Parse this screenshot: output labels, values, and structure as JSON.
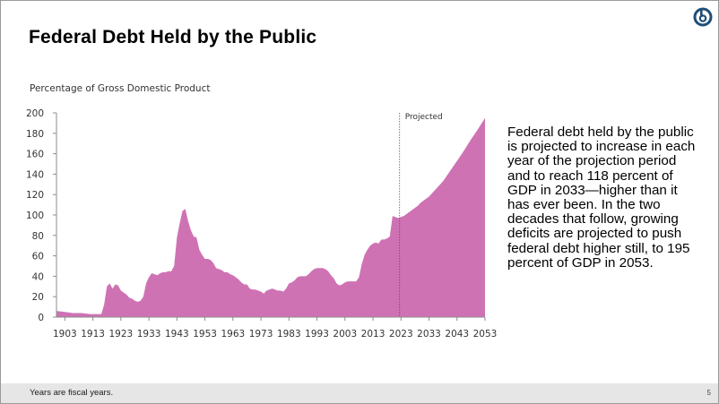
{
  "slide": {
    "title": "Federal Debt Held by the Public",
    "description": "Federal debt held by the public is projected to increase in each year of the projection period and to reach 118 percent of GDP in 2033—higher than it has ever been. In the two decades that follow, growing deficits are projected to push federal debt higher still, to 195 percent of GDP in 2053.",
    "footnote": "Years are fiscal years.",
    "page_number": "5",
    "logo_icon": "cbo-logo-icon"
  },
  "colors": {
    "area_fill": "#cf72b4",
    "axis": "#8c8c8c",
    "text": "#333333",
    "logo": "#1f4e79"
  },
  "chart_data": {
    "type": "area",
    "title": "",
    "ylabel": "Percentage of Gross Domestic Product",
    "xlabel": "",
    "xlim": [
      1900,
      2053
    ],
    "ylim": [
      0,
      200
    ],
    "xticks": [
      "1903",
      "1913",
      "1923",
      "1933",
      "1943",
      "1953",
      "1963",
      "1973",
      "1983",
      "1993",
      "2003",
      "2013",
      "2023",
      "2033",
      "2043",
      "2053"
    ],
    "yticks": [
      "0",
      "20",
      "40",
      "60",
      "80",
      "100",
      "120",
      "140",
      "160",
      "180",
      "200"
    ],
    "grid": false,
    "annotation": {
      "label": "Projected",
      "x": 2022.5
    },
    "series": [
      {
        "x": [
          1900,
          1903,
          1906,
          1909,
          1912,
          1915,
          1916,
          1917,
          1918,
          1919,
          1920,
          1921,
          1922,
          1923,
          1924,
          1925,
          1926,
          1927,
          1928,
          1929,
          1930,
          1931,
          1932,
          1933,
          1934,
          1935,
          1936,
          1937,
          1938,
          1939,
          1940,
          1941,
          1942,
          1943,
          1944,
          1945,
          1946,
          1947,
          1948,
          1949,
          1950,
          1951,
          1952,
          1953,
          1954,
          1955,
          1956,
          1957,
          1958,
          1959,
          1960,
          1961,
          1962,
          1963,
          1964,
          1965,
          1966,
          1967,
          1968,
          1969,
          1970,
          1971,
          1972,
          1973,
          1974,
          1975,
          1976,
          1977,
          1978,
          1979,
          1980,
          1981,
          1982,
          1983,
          1984,
          1985,
          1986,
          1987,
          1988,
          1989,
          1990,
          1991,
          1992,
          1993,
          1994,
          1995,
          1996,
          1997,
          1998,
          1999,
          2000,
          2001,
          2002,
          2003,
          2004,
          2005,
          2006,
          2007,
          2008,
          2009,
          2010,
          2011,
          2012,
          2013,
          2014,
          2015,
          2016,
          2017,
          2018,
          2019,
          2020,
          2021,
          2022,
          2023,
          2024,
          2025,
          2026,
          2027,
          2028,
          2029,
          2030,
          2031,
          2032,
          2033,
          2035,
          2038,
          2040,
          2043,
          2045,
          2048,
          2050,
          2053
        ],
        "values": [
          6,
          5,
          4,
          4,
          3,
          3,
          3,
          12,
          30,
          33,
          28,
          32,
          31,
          26,
          24,
          22,
          19,
          18,
          16,
          15,
          16,
          20,
          33,
          39,
          43,
          42,
          41,
          43,
          44,
          44,
          45,
          45,
          50,
          78,
          92,
          104,
          106,
          94,
          85,
          79,
          78,
          66,
          61,
          57,
          57,
          56,
          53,
          48,
          47,
          46,
          44,
          44,
          42,
          41,
          39,
          37,
          34,
          32,
          32,
          28,
          27,
          27,
          26,
          25,
          23,
          26,
          27,
          28,
          27,
          26,
          26,
          25,
          28,
          33,
          34,
          36,
          39,
          40,
          40,
          40,
          42,
          45,
          47,
          48,
          48,
          48,
          47,
          45,
          41,
          38,
          33,
          31,
          32,
          34,
          35,
          35,
          35,
          35,
          39,
          52,
          61,
          66,
          70,
          72,
          73,
          72,
          76,
          76,
          77,
          79,
          99,
          98,
          97,
          98,
          99,
          101,
          103,
          105,
          107,
          109,
          112,
          114,
          116,
          118,
          124,
          133,
          141,
          153,
          161,
          174,
          182,
          195
        ]
      }
    ]
  }
}
